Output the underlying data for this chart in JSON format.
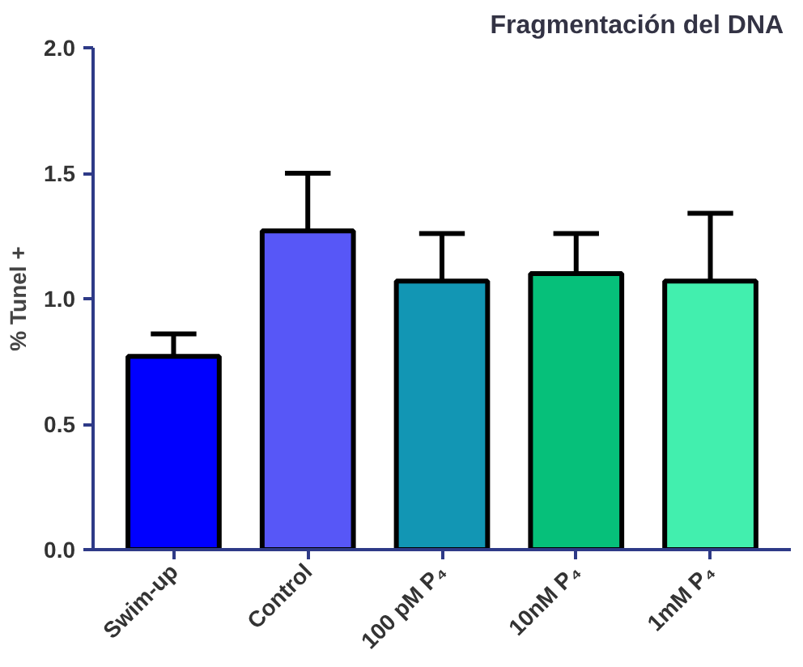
{
  "chart_data": {
    "type": "bar",
    "title": "Fragmentación del  DNA",
    "ylabel": "% Tunel +",
    "categories": [
      "Swim-up",
      "Control",
      "100 pM P₄",
      "10nM P₄",
      "1mM P₄"
    ],
    "values": [
      0.77,
      1.27,
      1.07,
      1.1,
      1.07
    ],
    "colors": [
      "#0000ff",
      "#5757f7",
      "#1296b4",
      "#06c07a",
      "#42efae"
    ],
    "errors": [
      [
        0.77,
        0.86
      ],
      [
        1.27,
        1.5
      ],
      [
        1.07,
        1.26
      ],
      [
        1.1,
        1.26
      ],
      [
        1.07,
        1.34
      ]
    ],
    "ylim": [
      0,
      2.0
    ],
    "yticks": [
      {
        "value": 0,
        "label": "0.0"
      },
      0.5,
      {
        "value": 1,
        "label": "1.0"
      },
      1.5,
      {
        "value": 2,
        "label": "2.0"
      }
    ],
    "grid": false
  }
}
